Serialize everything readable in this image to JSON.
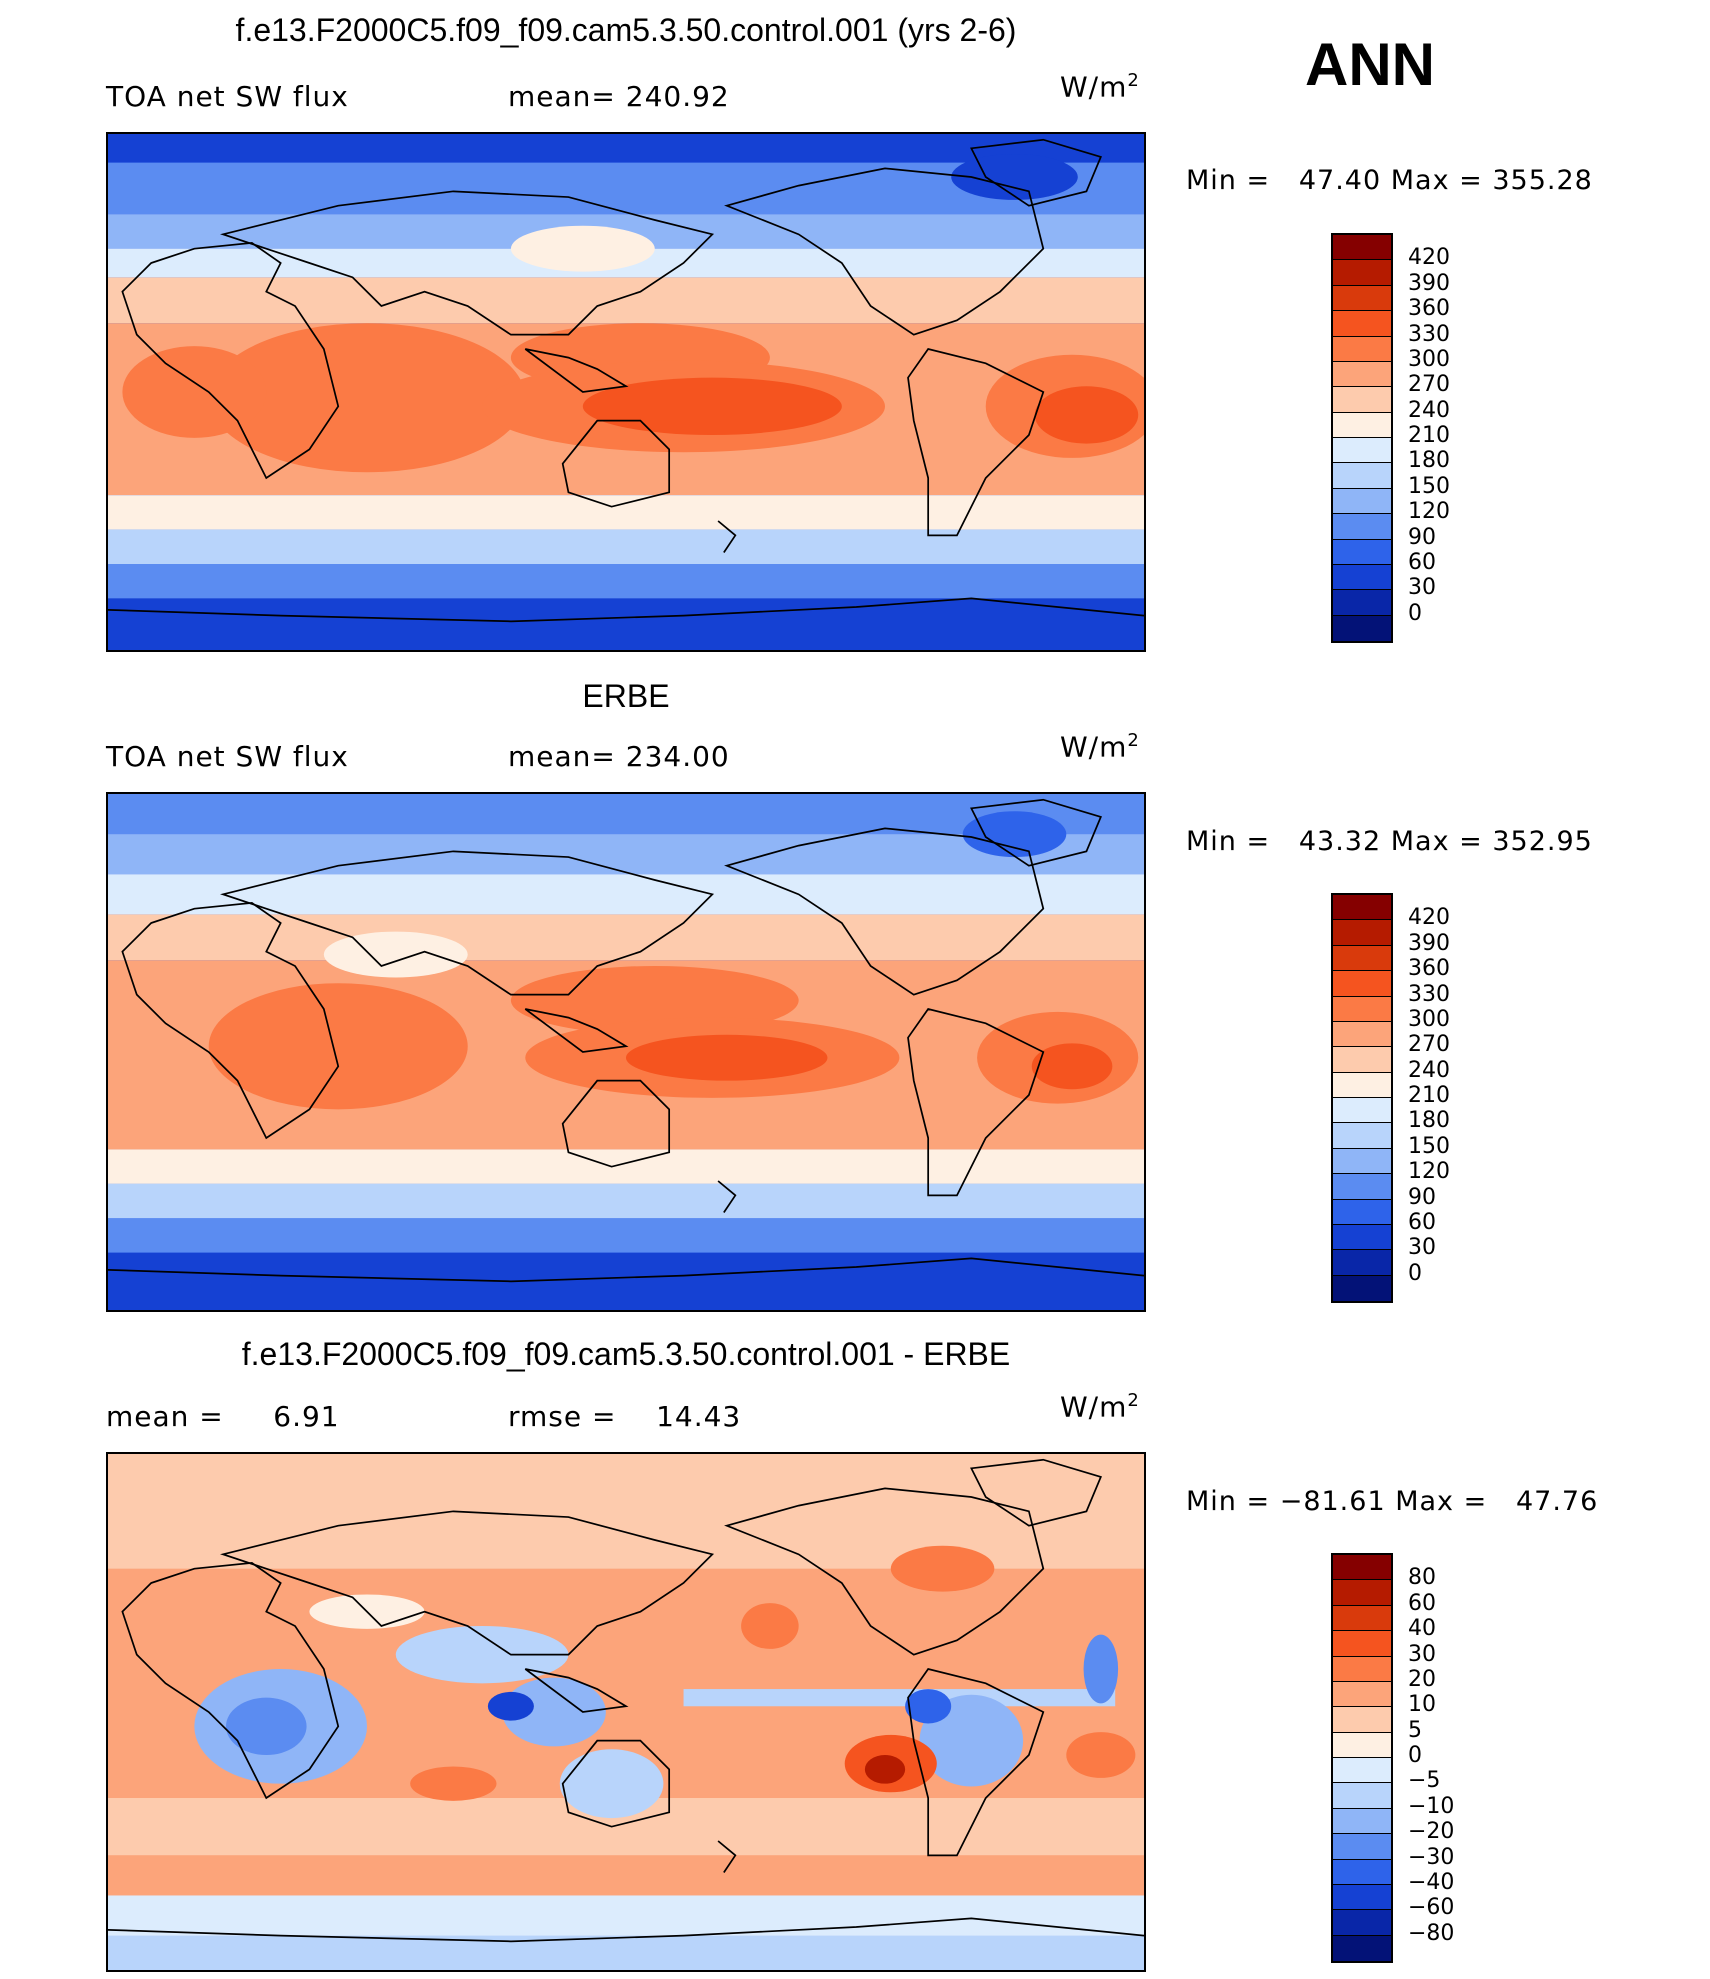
{
  "season": "ANN",
  "panels": [
    {
      "title": "f.e13.F2000C5.f09_f09.cam5.3.50.control.001 (yrs 2-6)",
      "left_text": "TOA net SW flux",
      "mid_text": "mean= 240.92",
      "units_base": "W/m",
      "units_exp": "2",
      "minmax": "Min =   47.40 Max = 355.28",
      "levels": [
        "420",
        "390",
        "360",
        "330",
        "300",
        "270",
        "240",
        "210",
        "180",
        "150",
        "120",
        "90",
        "60",
        "30",
        "0"
      ],
      "colors": [
        "#850000",
        "#b51b00",
        "#d93a0c",
        "#f5541f",
        "#fb7a45",
        "#fca47a",
        "#fdcbad",
        "#fef0e3",
        "#dcecfd",
        "#b8d4fb",
        "#8fb5f7",
        "#5b8cf1",
        "#2e63ea",
        "#1541d3",
        "#0926a8",
        "#031277"
      ],
      "data_range": [
        47.4,
        355.28
      ],
      "data_mean": 240.92
    },
    {
      "title": "ERBE",
      "left_text": "TOA net SW flux",
      "mid_text": "mean= 234.00",
      "units_base": "W/m",
      "units_exp": "2",
      "minmax": "Min =   43.32 Max = 352.95",
      "levels": [
        "420",
        "390",
        "360",
        "330",
        "300",
        "270",
        "240",
        "210",
        "180",
        "150",
        "120",
        "90",
        "60",
        "30",
        "0"
      ],
      "colors": [
        "#850000",
        "#b51b00",
        "#d93a0c",
        "#f5541f",
        "#fb7a45",
        "#fca47a",
        "#fdcbad",
        "#fef0e3",
        "#dcecfd",
        "#b8d4fb",
        "#8fb5f7",
        "#5b8cf1",
        "#2e63ea",
        "#1541d3",
        "#0926a8",
        "#031277"
      ],
      "data_range": [
        43.32,
        352.95
      ],
      "data_mean": 234.0
    },
    {
      "title": "f.e13.F2000C5.f09_f09.cam5.3.50.control.001 - ERBE",
      "left_text": "mean =     6.91",
      "mid_text": "rmse =    14.43",
      "units_base": "W/m",
      "units_exp": "2",
      "minmax": "Min = −81.61 Max =   47.76",
      "levels": [
        "80",
        "60",
        "40",
        "30",
        "20",
        "10",
        "5",
        "0",
        "−5",
        "−10",
        "−20",
        "−30",
        "−40",
        "−60",
        "−80"
      ],
      "colors": [
        "#850000",
        "#b51b00",
        "#d93a0c",
        "#f5541f",
        "#fb7a45",
        "#fca47a",
        "#fdcbad",
        "#fef0e3",
        "#dcecfd",
        "#b8d4fb",
        "#8fb5f7",
        "#5b8cf1",
        "#2e63ea",
        "#1541d3",
        "#0926a8",
        "#031277"
      ],
      "data_range": [
        -81.61,
        47.76
      ],
      "data_mean": 6.91,
      "data_rmse": 14.43
    }
  ]
}
